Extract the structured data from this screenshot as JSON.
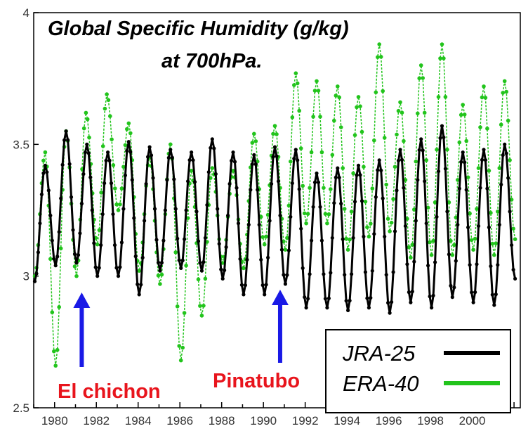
{
  "chart_data": {
    "type": "line",
    "title": "Global Specific Humidity (g/kg)",
    "subtitle": "at 700hPa.",
    "xlabel": "",
    "ylabel": "",
    "xlim": [
      1979.0,
      2002.3
    ],
    "ylim": [
      2.5,
      4.0
    ],
    "x_ticks": [
      "1980",
      "1982",
      "1984",
      "1986",
      "1988",
      "1990",
      "1992",
      "1994",
      "1996",
      "1998",
      "2000"
    ],
    "y_ticks": [
      "2.5",
      "3",
      "3.5",
      "4"
    ],
    "legend_placement": "bottom-right",
    "series": [
      {
        "name": "JRA-25",
        "color": "#000000",
        "peaks": [
          [
            1979.55,
            3.42
          ],
          [
            1980.55,
            3.55
          ],
          [
            1981.55,
            3.5
          ],
          [
            1982.55,
            3.47
          ],
          [
            1983.55,
            3.51
          ],
          [
            1984.55,
            3.49
          ],
          [
            1985.55,
            3.48
          ],
          [
            1986.55,
            3.47
          ],
          [
            1987.55,
            3.52
          ],
          [
            1988.55,
            3.47
          ],
          [
            1989.55,
            3.46
          ],
          [
            1990.55,
            3.49
          ],
          [
            1991.55,
            3.48
          ],
          [
            1992.55,
            3.39
          ],
          [
            1993.55,
            3.41
          ],
          [
            1994.55,
            3.42
          ],
          [
            1995.55,
            3.44
          ],
          [
            1996.55,
            3.48
          ],
          [
            1997.55,
            3.52
          ],
          [
            1998.55,
            3.57
          ],
          [
            1999.55,
            3.47
          ],
          [
            2000.55,
            3.48
          ],
          [
            2001.55,
            3.5
          ]
        ],
        "troughs": [
          [
            1979.05,
            2.98
          ],
          [
            1980.05,
            3.04
          ],
          [
            1981.05,
            3.05
          ],
          [
            1982.05,
            3.0
          ],
          [
            1983.05,
            3.0
          ],
          [
            1984.05,
            2.93
          ],
          [
            1985.05,
            3.02
          ],
          [
            1986.05,
            3.03
          ],
          [
            1987.05,
            3.02
          ],
          [
            1988.05,
            2.99
          ],
          [
            1989.05,
            2.93
          ],
          [
            1990.05,
            2.93
          ],
          [
            1991.05,
            2.97
          ],
          [
            1992.05,
            2.88
          ],
          [
            1993.05,
            2.88
          ],
          [
            1994.05,
            2.87
          ],
          [
            1995.05,
            2.88
          ],
          [
            1996.05,
            2.86
          ],
          [
            1997.05,
            2.9
          ],
          [
            1998.05,
            2.88
          ],
          [
            1999.05,
            2.92
          ],
          [
            2000.05,
            2.9
          ],
          [
            2001.05,
            2.89
          ],
          [
            2002.05,
            2.99
          ]
        ]
      },
      {
        "name": "ERA-40",
        "color": "#22c41c",
        "peaks": [
          [
            1979.55,
            3.47
          ],
          [
            1980.55,
            3.55
          ],
          [
            1981.5,
            3.62
          ],
          [
            1982.5,
            3.69
          ],
          [
            1983.55,
            3.58
          ],
          [
            1984.55,
            3.45
          ],
          [
            1985.55,
            3.5
          ],
          [
            1986.55,
            3.4
          ],
          [
            1987.55,
            3.41
          ],
          [
            1988.55,
            3.4
          ],
          [
            1989.55,
            3.54
          ],
          [
            1990.55,
            3.57
          ],
          [
            1991.55,
            3.77
          ],
          [
            1992.55,
            3.74
          ],
          [
            1993.55,
            3.72
          ],
          [
            1994.55,
            3.68
          ],
          [
            1995.55,
            3.88
          ],
          [
            1996.55,
            3.66
          ],
          [
            1997.55,
            3.8
          ],
          [
            1998.55,
            3.88
          ],
          [
            1999.55,
            3.65
          ],
          [
            2000.55,
            3.72
          ],
          [
            2001.55,
            3.74
          ]
        ],
        "troughs": [
          [
            1979.05,
            3.0
          ],
          [
            1980.05,
            2.66
          ],
          [
            1981.05,
            3.0
          ],
          [
            1982.05,
            3.12
          ],
          [
            1983.05,
            3.25
          ],
          [
            1984.05,
            3.02
          ],
          [
            1985.05,
            2.97
          ],
          [
            1986.05,
            2.68
          ],
          [
            1987.05,
            2.85
          ],
          [
            1988.05,
            3.05
          ],
          [
            1989.05,
            3.03
          ],
          [
            1990.05,
            3.12
          ],
          [
            1991.05,
            3.1
          ],
          [
            1992.05,
            3.2
          ],
          [
            1993.05,
            3.2
          ],
          [
            1994.05,
            3.1
          ],
          [
            1995.05,
            3.15
          ],
          [
            1996.05,
            3.17
          ],
          [
            1997.05,
            3.07
          ],
          [
            1998.05,
            3.08
          ],
          [
            1999.05,
            3.08
          ],
          [
            2000.05,
            3.1
          ],
          [
            2001.05,
            3.08
          ],
          [
            2002.05,
            3.14
          ]
        ]
      }
    ],
    "annotations": [
      {
        "text": "El chichon",
        "arrow_x": 1981.3,
        "color": "#e8141c"
      },
      {
        "text": "Pinatubo",
        "arrow_x": 1990.8,
        "color": "#e8141c"
      }
    ],
    "arrow_color": "#1919e6"
  }
}
